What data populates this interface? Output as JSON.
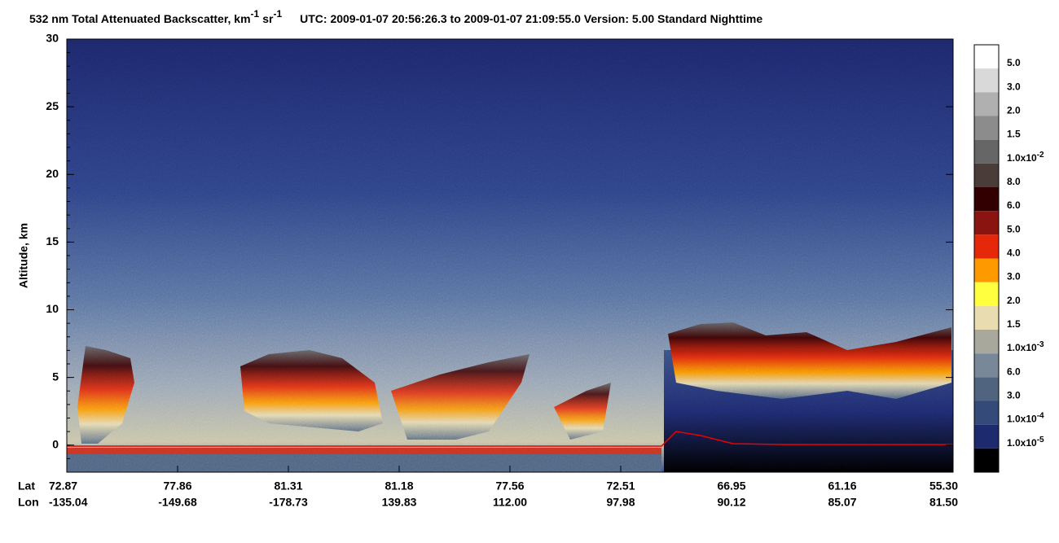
{
  "chart_data": {
    "type": "heatmap",
    "title": {
      "text": "532 nm Total Attenuated Backscatter, km",
      "sup1": "-1",
      "text2": "sr",
      "sup2": "-1",
      "info": "UTC:  2009-01-07 20:56:26.3  to  2009-01-07 21:09:55.0    Version: 5.00  Standard  Nighttime"
    },
    "y_label": "Altitude, km",
    "ylim": [
      -2,
      30
    ],
    "yticks": [
      0,
      5,
      10,
      15,
      20,
      25,
      30
    ],
    "x_row_labels": [
      "Lat",
      "Lon"
    ],
    "lat": [
      "72.87",
      "77.86",
      "81.31",
      "81.18",
      "77.56",
      "72.51",
      "66.95",
      "61.16",
      "55.30"
    ],
    "lon": [
      "-135.04",
      "-149.68",
      "-178.73",
      "139.83",
      "112.00",
      "97.98",
      "90.12",
      "85.07",
      "81.50"
    ],
    "colorbar": {
      "colors": [
        "#ffffff",
        "#d9d9d9",
        "#b0b0b0",
        "#8c8c8c",
        "#666666",
        "#4a3c38",
        "#320000",
        "#8a1410",
        "#e6280a",
        "#ff9900",
        "#ffff40",
        "#e8dcb0",
        "#a8a89c",
        "#788898",
        "#506480",
        "#344a78",
        "#1e2a6e",
        "#000000"
      ],
      "labels": [
        {
          "text": "5.0"
        },
        {
          "text": "3.0"
        },
        {
          "text": "2.0"
        },
        {
          "text": "1.5"
        },
        {
          "text": "1.0x10",
          "sup": "-2"
        },
        {
          "text": "8.0"
        },
        {
          "text": "6.0"
        },
        {
          "text": "5.0"
        },
        {
          "text": "4.0"
        },
        {
          "text": "3.0"
        },
        {
          "text": "2.0"
        },
        {
          "text": "1.5"
        },
        {
          "text": "1.0x10",
          "sup": "-3"
        },
        {
          "text": "6.0"
        },
        {
          "text": "3.0"
        },
        {
          "text": "1.0x10",
          "sup": "-4"
        },
        {
          "text": "1.0x10",
          "sup": "-5"
        }
      ]
    }
  }
}
